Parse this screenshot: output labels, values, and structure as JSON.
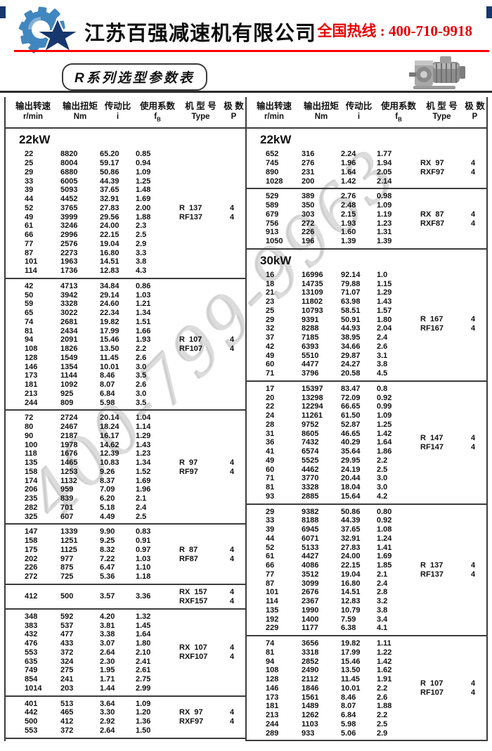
{
  "header": {
    "company": "江苏百强减速机有限公司",
    "hotline": "全国热线 : 400-710-9918",
    "accent_red": "#e60000",
    "logo_blue": "#4187bf",
    "logo_navy": "#17386e"
  },
  "title_badge": "R系列选型参数表",
  "watermark": "400-799-9963",
  "table": {
    "header": {
      "cols": [
        {
          "cn": "输出转速",
          "unit": "r/min"
        },
        {
          "cn": "输出扭矩",
          "unit": "Nm"
        },
        {
          "cn": "传动比",
          "unit": "i"
        },
        {
          "cn": "使用系数",
          "unit": "fB"
        },
        {
          "cn": "机 型 号",
          "unit": "Type"
        },
        {
          "cn": "极 数",
          "unit": "P"
        }
      ]
    },
    "columns": [
      {
        "blocks": [
          {
            "section": "22kW"
          },
          {
            "rows": [
              [
                "22",
                "8820",
                "65.20",
                "0.85"
              ],
              [
                "25",
                "8004",
                "59.17",
                "0.94"
              ],
              [
                "29",
                "6880",
                "50.86",
                "1.09"
              ],
              [
                "33",
                "6005",
                "44.39",
                "1.25"
              ],
              [
                "39",
                "5093",
                "37.65",
                "1.48"
              ],
              [
                "44",
                "4452",
                "32.91",
                "1.69"
              ],
              [
                "52",
                "3765",
                "27.83",
                "2.00"
              ],
              [
                "49",
                "3999",
                "29.56",
                "1.88"
              ],
              [
                "61",
                "3246",
                "24.00",
                "2.3"
              ],
              [
                "66",
                "2996",
                "22.15",
                "2.5"
              ],
              [
                "77",
                "2576",
                "19.04",
                "2.9"
              ],
              [
                "87",
                "2273",
                "16.80",
                "3.3"
              ],
              [
                "101",
                "1963",
                "14.51",
                "3.8"
              ],
              [
                "114",
                "1736",
                "12.83",
                "4.3"
              ]
            ],
            "types": [
              {
                "model": "R  137",
                "poles": "4"
              },
              {
                "model": "RF137",
                "poles": "4"
              }
            ]
          },
          {
            "rows": [
              [
                "42",
                "4713",
                "34.84",
                "0.86"
              ],
              [
                "50",
                "3942",
                "29.14",
                "1.03"
              ],
              [
                "59",
                "3328",
                "24.60",
                "1.21"
              ],
              [
                "65",
                "3022",
                "22.34",
                "1.34"
              ],
              [
                "74",
                "2681",
                "19.82",
                "1.51"
              ],
              [
                "81",
                "2434",
                "17.99",
                "1.66"
              ],
              [
                "94",
                "2091",
                "15.46",
                "1.93"
              ],
              [
                "108",
                "1826",
                "13.50",
                "2.2"
              ],
              [
                "128",
                "1549",
                "11.45",
                "2.6"
              ],
              [
                "146",
                "1354",
                "10.01",
                "3.0"
              ],
              [
                "173",
                "1144",
                "8.46",
                "3.5"
              ],
              [
                "181",
                "1092",
                "8.07",
                "2.6"
              ],
              [
                "213",
                "925",
                "6.84",
                "3.0"
              ],
              [
                "244",
                "809",
                "5.98",
                "3.5"
              ]
            ],
            "types": [
              {
                "model": "R  107",
                "poles": "4"
              },
              {
                "model": "RF107",
                "poles": "4"
              }
            ]
          },
          {
            "rows": [
              [
                "72",
                "2724",
                "20.14",
                "1.04"
              ],
              [
                "80",
                "2467",
                "18.24",
                "1.14"
              ],
              [
                "90",
                "2187",
                "16.17",
                "1.29"
              ],
              [
                "100",
                "1978",
                "14.62",
                "1.43"
              ],
              [
                "118",
                "1676",
                "12.39",
                "1.23"
              ],
              [
                "135",
                "1465",
                "10.83",
                "1.34"
              ],
              [
                "158",
                "1253",
                "9.26",
                "1.52"
              ],
              [
                "174",
                "1132",
                "8.37",
                "1.69"
              ],
              [
                "206",
                "959",
                "7.09",
                "1.96"
              ],
              [
                "235",
                "839",
                "6.20",
                "2.1"
              ],
              [
                "282",
                "701",
                "5.18",
                "2.4"
              ],
              [
                "325",
                "607",
                "4.49",
                "2.5"
              ]
            ],
            "types": [
              {
                "model": "R  97",
                "poles": "4"
              },
              {
                "model": "RF97",
                "poles": "4"
              }
            ]
          },
          {
            "rows": [
              [
                "147",
                "1339",
                "9.90",
                "0.83"
              ],
              [
                "158",
                "1251",
                "9.25",
                "0.91"
              ],
              [
                "175",
                "1125",
                "8.32",
                "0.97"
              ],
              [
                "202",
                "977",
                "7.22",
                "1.03"
              ],
              [
                "226",
                "875",
                "6.47",
                "1.10"
              ],
              [
                "272",
                "725",
                "5.36",
                "1.18"
              ]
            ],
            "types": [
              {
                "model": "R  87",
                "poles": "4"
              },
              {
                "model": "RF87",
                "poles": "4"
              }
            ]
          },
          {
            "rows": [
              [
                "412",
                "500",
                "3.57",
                "3.36"
              ]
            ],
            "types": [
              {
                "model": "RX  157",
                "poles": "4"
              },
              {
                "model": "RXF157",
                "poles": "4"
              }
            ]
          },
          {
            "rows": [
              [
                "348",
                "592",
                "4.20",
                "1.32"
              ],
              [
                "383",
                "537",
                "3.81",
                "1.45"
              ],
              [
                "432",
                "477",
                "3.38",
                "1.64"
              ],
              [
                "476",
                "433",
                "3.07",
                "1.80"
              ],
              [
                "553",
                "372",
                "2.64",
                "2.10"
              ],
              [
                "635",
                "324",
                "2.30",
                "2.41"
              ],
              [
                "749",
                "275",
                "1.95",
                "2.61"
              ],
              [
                "854",
                "241",
                "1.71",
                "2.75"
              ],
              [
                "1014",
                "203",
                "1.44",
                "2.99"
              ]
            ],
            "types": [
              {
                "model": "RX  107",
                "poles": "4"
              },
              {
                "model": "RXF107",
                "poles": "4"
              }
            ]
          },
          {
            "rows": [
              [
                "401",
                "513",
                "3.64",
                "1.09"
              ],
              [
                "442",
                "465",
                "3.30",
                "1.20"
              ],
              [
                "500",
                "412",
                "2.92",
                "1.36"
              ],
              [
                "553",
                "372",
                "2.64",
                "1.50"
              ]
            ],
            "types": [
              {
                "model": "RX  97",
                "poles": "4"
              },
              {
                "model": "RXF97",
                "poles": "4"
              }
            ]
          }
        ]
      },
      {
        "blocks": [
          {
            "section": "22kW"
          },
          {
            "rows": [
              [
                "652",
                "316",
                "2.24",
                "1.77"
              ],
              [
                "745",
                "276",
                "1.96",
                "1.94"
              ],
              [
                "890",
                "231",
                "1.64",
                "2.05"
              ],
              [
                "1028",
                "200",
                "1.42",
                "2.14"
              ]
            ],
            "types": [
              {
                "model": "RX  97",
                "poles": "4"
              },
              {
                "model": "RXF97",
                "poles": "4"
              }
            ]
          },
          {
            "rows": [
              [
                "529",
                "389",
                "2.76",
                "0.98"
              ],
              [
                "589",
                "350",
                "2.48",
                "1.09"
              ],
              [
                "679",
                "303",
                "2.15",
                "1.19"
              ],
              [
                "756",
                "272",
                "1.93",
                "1.23"
              ],
              [
                "913",
                "226",
                "1.60",
                "1.31"
              ],
              [
                "1050",
                "196",
                "1.39",
                "1.39"
              ]
            ],
            "types": [
              {
                "model": "RX  87",
                "poles": "4"
              },
              {
                "model": "RXF87",
                "poles": "4"
              }
            ]
          },
          {
            "section": "30kW"
          },
          {
            "rows": [
              [
                "16",
                "16996",
                "92.14",
                "1.0"
              ],
              [
                "18",
                "14735",
                "79.88",
                "1.15"
              ],
              [
                "21",
                "13109",
                "71.07",
                "1.29"
              ],
              [
                "23",
                "11802",
                "63.98",
                "1.43"
              ],
              [
                "25",
                "10793",
                "58.51",
                "1.57"
              ],
              [
                "29",
                "9391",
                "50.91",
                "1.80"
              ],
              [
                "32",
                "8288",
                "44.93",
                "2.04"
              ],
              [
                "37",
                "7185",
                "38.95",
                "2.4"
              ],
              [
                "42",
                "6393",
                "34.66",
                "2.6"
              ],
              [
                "49",
                "5510",
                "29.87",
                "3.1"
              ],
              [
                "60",
                "4477",
                "24.27",
                "3.8"
              ],
              [
                "71",
                "3796",
                "20.58",
                "4.5"
              ]
            ],
            "types": [
              {
                "model": "R  167",
                "poles": "4"
              },
              {
                "model": "RF167",
                "poles": "4"
              }
            ]
          },
          {
            "rows": [
              [
                "17",
                "15397",
                "83.47",
                "0.8"
              ],
              [
                "20",
                "13298",
                "72.09",
                "0.92"
              ],
              [
                "22",
                "12294",
                "66.65",
                "0.99"
              ],
              [
                "24",
                "11261",
                "61.50",
                "1.09"
              ],
              [
                "28",
                "9752",
                "52.87",
                "1.25"
              ],
              [
                "31",
                "8605",
                "46.65",
                "1.42"
              ],
              [
                "36",
                "7432",
                "40.29",
                "1.64"
              ],
              [
                "41",
                "6574",
                "35.64",
                "1.86"
              ],
              [
                "49",
                "5525",
                "29.95",
                "2.2"
              ],
              [
                "60",
                "4462",
                "24.19",
                "2.5"
              ],
              [
                "71",
                "3770",
                "20.44",
                "3.0"
              ],
              [
                "81",
                "3328",
                "18.04",
                "3.0"
              ],
              [
                "93",
                "2885",
                "15.64",
                "4.2"
              ]
            ],
            "types": [
              {
                "model": "R  147",
                "poles": "4"
              },
              {
                "model": "RF147",
                "poles": "4"
              }
            ]
          },
          {
            "rows": [
              [
                "29",
                "9382",
                "50.86",
                "0.80"
              ],
              [
                "33",
                "8188",
                "44.39",
                "0.92"
              ],
              [
                "39",
                "6945",
                "37.65",
                "1.08"
              ],
              [
                "44",
                "6071",
                "32.91",
                "1.24"
              ],
              [
                "52",
                "5133",
                "27.83",
                "1.41"
              ],
              [
                "61",
                "4427",
                "24.00",
                "1.69"
              ],
              [
                "66",
                "4086",
                "22.15",
                "1.85"
              ],
              [
                "77",
                "3512",
                "19.04",
                "2.1"
              ],
              [
                "87",
                "3099",
                "16.80",
                "2.4"
              ],
              [
                "101",
                "2676",
                "14.51",
                "2.8"
              ],
              [
                "114",
                "2367",
                "12.83",
                "3.2"
              ],
              [
                "135",
                "1990",
                "10.79",
                "3.8"
              ],
              [
                "192",
                "1400",
                "7.59",
                "3.4"
              ],
              [
                "229",
                "1177",
                "6.38",
                "4.1"
              ]
            ],
            "types": [
              {
                "model": "R  137",
                "poles": "4"
              },
              {
                "model": "RF137",
                "poles": "4"
              }
            ]
          },
          {
            "rows": [
              [
                "74",
                "3656",
                "19.82",
                "1.11"
              ],
              [
                "81",
                "3318",
                "17.99",
                "1.22"
              ],
              [
                "94",
                "2852",
                "15.46",
                "1.42"
              ],
              [
                "108",
                "2490",
                "13.50",
                "1.62"
              ],
              [
                "128",
                "2112",
                "11.45",
                "1.91"
              ],
              [
                "146",
                "1846",
                "10.01",
                "2.2"
              ],
              [
                "173",
                "1561",
                "8.46",
                "2.6"
              ],
              [
                "181",
                "1489",
                "8.07",
                "1.88"
              ],
              [
                "213",
                "1262",
                "6.84",
                "2.2"
              ],
              [
                "244",
                "1103",
                "5.98",
                "2.5"
              ],
              [
                "289",
                "933",
                "5.06",
                "2.9"
              ]
            ],
            "types": [
              {
                "model": "R  107",
                "poles": "4"
              },
              {
                "model": "RF107",
                "poles": "4"
              }
            ]
          }
        ]
      }
    ]
  }
}
